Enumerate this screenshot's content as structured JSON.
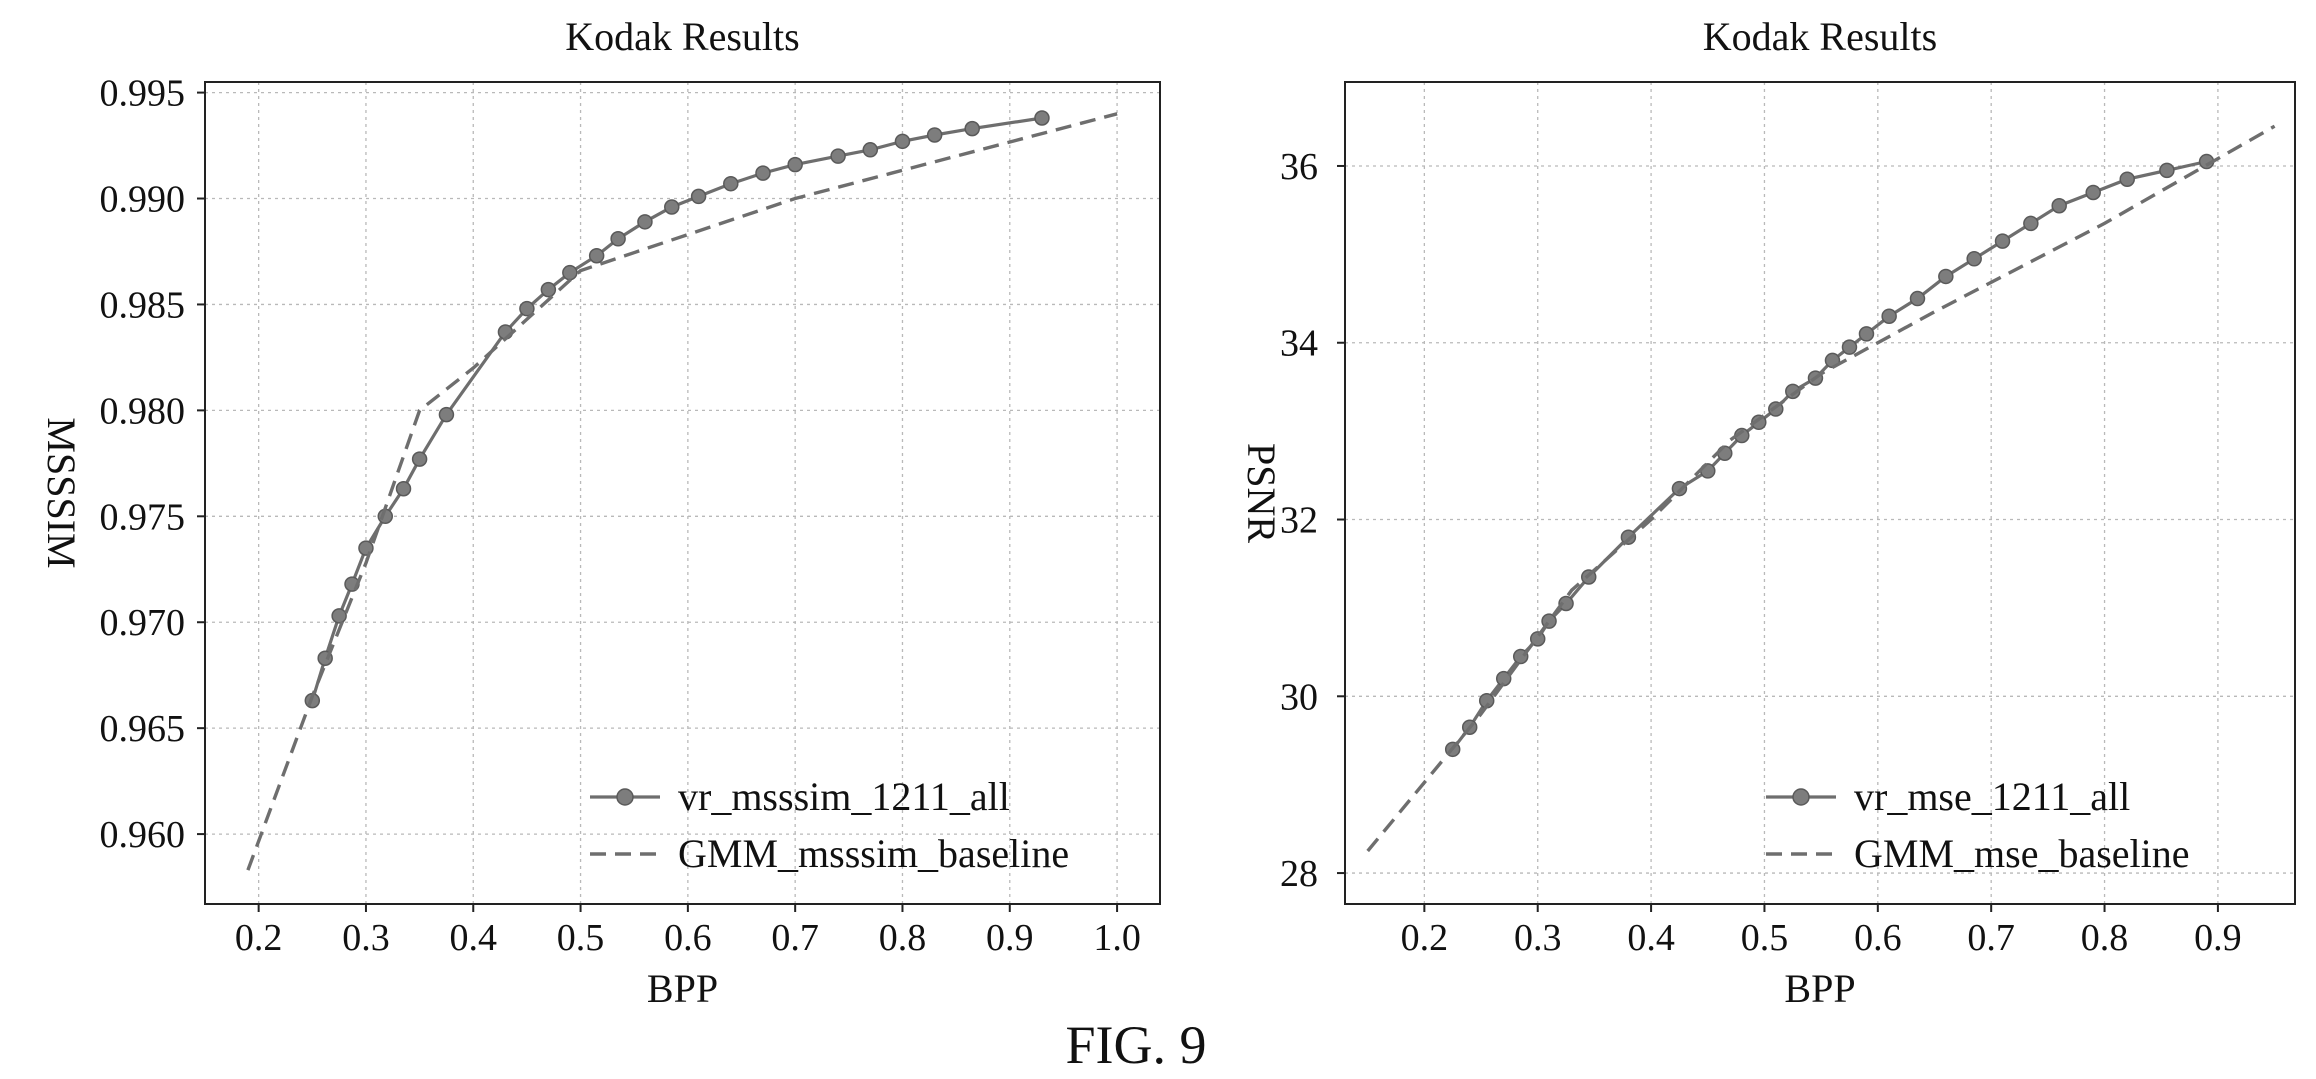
{
  "figure_label": "FIG. 9",
  "chart_data": [
    {
      "type": "line",
      "title": "Kodak Results",
      "xlabel": "BPP",
      "ylabel": "MSSSIM",
      "xlim": [
        0.15,
        1.04
      ],
      "ylim": [
        0.9567,
        0.9955
      ],
      "xticks": [
        0.2,
        0.3,
        0.4,
        0.5,
        0.6,
        0.7,
        0.8,
        0.9,
        1.0
      ],
      "xtick_labels": [
        "0.2",
        "0.3",
        "0.4",
        "0.5",
        "0.6",
        "0.7",
        "0.8",
        "0.9",
        "1.0"
      ],
      "yticks": [
        0.96,
        0.965,
        0.97,
        0.975,
        0.98,
        0.985,
        0.99,
        0.995
      ],
      "ytick_labels": [
        "0.960",
        "0.965",
        "0.970",
        "0.975",
        "0.980",
        "0.985",
        "0.990",
        "0.995"
      ],
      "grid": true,
      "legend_position": "bottom-right",
      "series": [
        {
          "name": "vr_msssim_1211_all",
          "style": "solid-markers",
          "x": [
            0.25,
            0.262,
            0.275,
            0.287,
            0.3,
            0.318,
            0.335,
            0.35,
            0.375,
            0.43,
            0.45,
            0.47,
            0.49,
            0.515,
            0.535,
            0.56,
            0.585,
            0.61,
            0.64,
            0.67,
            0.7,
            0.74,
            0.77,
            0.8,
            0.83,
            0.865,
            0.93
          ],
          "y": [
            0.9663,
            0.9683,
            0.9703,
            0.9718,
            0.9735,
            0.975,
            0.9763,
            0.9777,
            0.9798,
            0.9837,
            0.9848,
            0.9857,
            0.9865,
            0.9873,
            0.9881,
            0.9889,
            0.9896,
            0.9901,
            0.9907,
            0.9912,
            0.9916,
            0.992,
            0.9923,
            0.9927,
            0.993,
            0.9933,
            0.9938
          ]
        },
        {
          "name": "GMM_msssim_baseline",
          "style": "dashed",
          "x": [
            0.19,
            0.25,
            0.3,
            0.35,
            0.4,
            0.45,
            0.5,
            0.7,
            1.0
          ],
          "y": [
            0.9583,
            0.9665,
            0.9728,
            0.98,
            0.982,
            0.9843,
            0.9866,
            0.99,
            0.994
          ]
        }
      ]
    },
    {
      "type": "line",
      "title": "Kodak Results",
      "xlabel": "BPP",
      "ylabel": "PSNR",
      "xlim": [
        0.13,
        0.968
      ],
      "ylim": [
        27.65,
        36.95
      ],
      "xticks": [
        0.2,
        0.3,
        0.4,
        0.5,
        0.6,
        0.7,
        0.8,
        0.9
      ],
      "xtick_labels": [
        "0.2",
        "0.3",
        "0.4",
        "0.5",
        "0.6",
        "0.7",
        "0.8",
        "0.9"
      ],
      "yticks": [
        28,
        30,
        32,
        34,
        36
      ],
      "ytick_labels": [
        "28",
        "30",
        "32",
        "34",
        "36"
      ],
      "grid": true,
      "legend_position": "bottom-right",
      "series": [
        {
          "name": "vr_mse_1211_all",
          "style": "solid-markers",
          "x": [
            0.225,
            0.24,
            0.255,
            0.27,
            0.285,
            0.3,
            0.31,
            0.325,
            0.345,
            0.38,
            0.425,
            0.45,
            0.465,
            0.48,
            0.495,
            0.51,
            0.525,
            0.545,
            0.56,
            0.575,
            0.59,
            0.61,
            0.635,
            0.66,
            0.685,
            0.71,
            0.735,
            0.76,
            0.79,
            0.82,
            0.855,
            0.89
          ],
          "y": [
            29.4,
            29.65,
            29.95,
            30.2,
            30.45,
            30.65,
            30.85,
            31.05,
            31.35,
            31.8,
            32.35,
            32.55,
            32.75,
            32.95,
            33.1,
            33.25,
            33.45,
            33.6,
            33.8,
            33.95,
            34.1,
            34.3,
            34.5,
            34.75,
            34.95,
            35.15,
            35.35,
            35.55,
            35.7,
            35.85,
            35.95,
            36.05
          ]
        },
        {
          "name": "GMM_mse_baseline",
          "style": "dashed",
          "x": [
            0.15,
            0.25,
            0.33,
            0.4,
            0.47,
            0.55,
            0.65,
            0.8,
            0.95
          ],
          "y": [
            28.25,
            29.8,
            31.2,
            32.0,
            32.9,
            33.65,
            34.35,
            35.35,
            36.45
          ]
        }
      ]
    }
  ]
}
